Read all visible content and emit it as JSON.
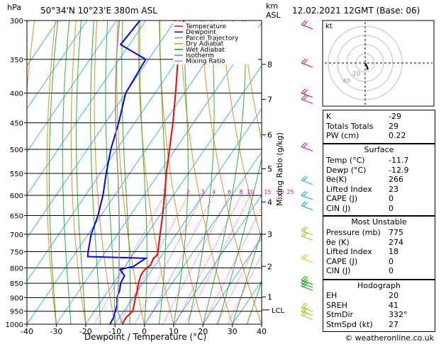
{
  "header": {
    "location": "50°34'N  10°23'E  380m  ASL",
    "datetime": "12.02.2021  12GMT  (Base: 06)"
  },
  "chart_data": {
    "type": "line",
    "subtype": "skew-T log-P diagram",
    "ylabel_left": "hPa",
    "ylabel_right_km": "km\nASL",
    "ylabel_mixing": "Mixing Ratio (g/kg)",
    "xlabel": "Dewpoint / Temperature (°C)",
    "xlim": [
      -40,
      40
    ],
    "ylim_hpa": [
      1000,
      300
    ],
    "x_ticks": [
      -40,
      -30,
      -20,
      -10,
      0,
      10,
      20,
      30,
      40
    ],
    "pressure_ticks": [
      300,
      350,
      400,
      450,
      500,
      550,
      600,
      650,
      700,
      750,
      800,
      850,
      900,
      950,
      1000
    ],
    "km_ticks": [
      {
        "label": "8",
        "hpa": 357
      },
      {
        "label": "7",
        "hpa": 410
      },
      {
        "label": "6",
        "hpa": 472
      },
      {
        "label": "5",
        "hpa": 540
      },
      {
        "label": "4",
        "hpa": 616
      },
      {
        "label": "3",
        "hpa": 700
      },
      {
        "label": "2",
        "hpa": 795
      },
      {
        "label": "1",
        "hpa": 898
      }
    ],
    "lcl_label": "LCL",
    "lcl_hpa": 945,
    "mixing_ratio_labels": [
      "1",
      "2",
      "3",
      "4",
      "6",
      "8",
      "10",
      "15",
      "20",
      "25"
    ],
    "mixing_ratio_values": [
      1,
      2,
      3,
      4,
      6,
      8,
      10,
      15,
      20,
      25
    ],
    "legend": [
      {
        "name": "Temperature",
        "color": "#ff0000",
        "dash": "solid"
      },
      {
        "name": "Dewpoint",
        "color": "#0000ff",
        "dash": "solid"
      },
      {
        "name": "Parcel Trajectory",
        "color": "#909090",
        "dash": "solid"
      },
      {
        "name": "Dry Adiabat",
        "color": "#ff8c00",
        "dash": "solid"
      },
      {
        "name": "Wet Adiabat",
        "color": "#00b000",
        "dash": "solid"
      },
      {
        "name": "Isotherm",
        "color": "#00aaff",
        "dash": "solid"
      },
      {
        "name": "Mixing Ratio",
        "color": "#ff00ff",
        "dash": "dotted"
      }
    ],
    "series": [
      {
        "name": "Temperature",
        "color": "#ff0000",
        "points": [
          [
            1000,
            -7.5
          ],
          [
            975,
            -7.8
          ],
          [
            950,
            -7.0
          ],
          [
            925,
            -8.0
          ],
          [
            900,
            -9.2
          ],
          [
            875,
            -10.2
          ],
          [
            850,
            -11.5
          ],
          [
            825,
            -12.5
          ],
          [
            810,
            -12.6
          ],
          [
            790,
            -11.6
          ],
          [
            770,
            -12.2
          ],
          [
            760,
            -11.6
          ],
          [
            750,
            -12.2
          ],
          [
            700,
            -15.5
          ],
          [
            650,
            -19
          ],
          [
            600,
            -23
          ],
          [
            550,
            -27.5
          ],
          [
            500,
            -32
          ],
          [
            450,
            -37
          ],
          [
            400,
            -43
          ],
          [
            350,
            -50
          ],
          [
            300,
            -57
          ]
        ]
      },
      {
        "name": "Dewpoint",
        "color": "#0000ff",
        "points": [
          [
            1000,
            -11.7
          ],
          [
            975,
            -12.0
          ],
          [
            950,
            -12.9
          ],
          [
            925,
            -13.8
          ],
          [
            900,
            -15.5
          ],
          [
            875,
            -16.2
          ],
          [
            850,
            -17.6
          ],
          [
            825,
            -18.0
          ],
          [
            805,
            -21.0
          ],
          [
            795,
            -17.0
          ],
          [
            785,
            -16.2
          ],
          [
            770,
            -14.8
          ],
          [
            765,
            -35.0
          ],
          [
            750,
            -36
          ],
          [
            700,
            -39
          ],
          [
            650,
            -41
          ],
          [
            600,
            -44
          ],
          [
            550,
            -48
          ],
          [
            500,
            -52
          ],
          [
            450,
            -55.5
          ],
          [
            400,
            -60
          ],
          [
            350,
            -61
          ],
          [
            330,
            -73
          ],
          [
            300,
            -72
          ]
        ]
      },
      {
        "name": "Parcel Trajectory",
        "color": "#909090",
        "points": [
          [
            1000,
            -7.5
          ],
          [
            945,
            -12.5
          ],
          [
            900,
            -15.2
          ],
          [
            850,
            -18.3
          ],
          [
            800,
            -21.7
          ],
          [
            750,
            -25.4
          ],
          [
            700,
            -29.4
          ],
          [
            650,
            -33.8
          ],
          [
            600,
            -38.7
          ],
          [
            550,
            -44
          ],
          [
            500,
            -50
          ],
          [
            450,
            -56.5
          ],
          [
            400,
            -63.5
          ],
          [
            350,
            -71
          ],
          [
            300,
            -79
          ]
        ]
      }
    ],
    "wind_barbs": [
      {
        "hpa": 965,
        "color": "#a0c000"
      },
      {
        "hpa": 950,
        "color": "#a0c000"
      },
      {
        "hpa": 935,
        "color": "#a0c000"
      },
      {
        "hpa": 860,
        "color": "#00a000"
      },
      {
        "hpa": 850,
        "color": "#00a000"
      },
      {
        "hpa": 840,
        "color": "#00a000"
      },
      {
        "hpa": 770,
        "color": "#e0c000"
      },
      {
        "hpa": 705,
        "color": "#a0c000"
      },
      {
        "hpa": 690,
        "color": "#a0c000"
      },
      {
        "hpa": 625,
        "color": "#00b0b0"
      },
      {
        "hpa": 600,
        "color": "#00b0b0"
      },
      {
        "hpa": 565,
        "color": "#00b0b0"
      },
      {
        "hpa": 495,
        "color": "#a000a0"
      },
      {
        "hpa": 410,
        "color": "#e00040"
      },
      {
        "hpa": 400,
        "color": "#e00040"
      },
      {
        "hpa": 355,
        "color": "#e00040"
      },
      {
        "hpa": 305,
        "color": "#e00040"
      }
    ]
  },
  "hodograph": {
    "label": "kt",
    "ring_labels": [
      "20",
      "40"
    ],
    "points": [
      [
        0,
        0
      ],
      [
        1.5,
        -3
      ],
      [
        3,
        -6
      ],
      [
        4,
        -9
      ],
      [
        2,
        -7
      ]
    ]
  },
  "indices": {
    "rows": [
      {
        "label": "K",
        "value": "-29"
      },
      {
        "label": "Totals Totals",
        "value": "29"
      },
      {
        "label": "PW (cm)",
        "value": "0.22"
      }
    ]
  },
  "surface": {
    "title": "Surface",
    "rows": [
      {
        "label": "Temp (°C)",
        "value": "-11.7"
      },
      {
        "label": "Dewp (°C)",
        "value": "-12.9"
      },
      {
        "label": "θe(K)",
        "value": "266"
      },
      {
        "label": "Lifted Index",
        "value": "23"
      },
      {
        "label": "CAPE (J)",
        "value": "0"
      },
      {
        "label": "CIN (J)",
        "value": "0"
      }
    ]
  },
  "most_unstable": {
    "title": "Most Unstable",
    "rows": [
      {
        "label": "Pressure (mb)",
        "value": "775"
      },
      {
        "label": "θe (K)",
        "value": "274"
      },
      {
        "label": "Lifted Index",
        "value": "18"
      },
      {
        "label": "CAPE (J)",
        "value": "0"
      },
      {
        "label": "CIN (J)",
        "value": "0"
      }
    ]
  },
  "hodograph_params": {
    "title": "Hodograph",
    "rows": [
      {
        "label": "EH",
        "value": "20"
      },
      {
        "label": "SREH",
        "value": "41"
      },
      {
        "label": "StmDir",
        "value": "332°"
      },
      {
        "label": "StmSpd (kt)",
        "value": "27"
      }
    ]
  },
  "footer": {
    "copyright": "© weatheronline.co.uk"
  }
}
